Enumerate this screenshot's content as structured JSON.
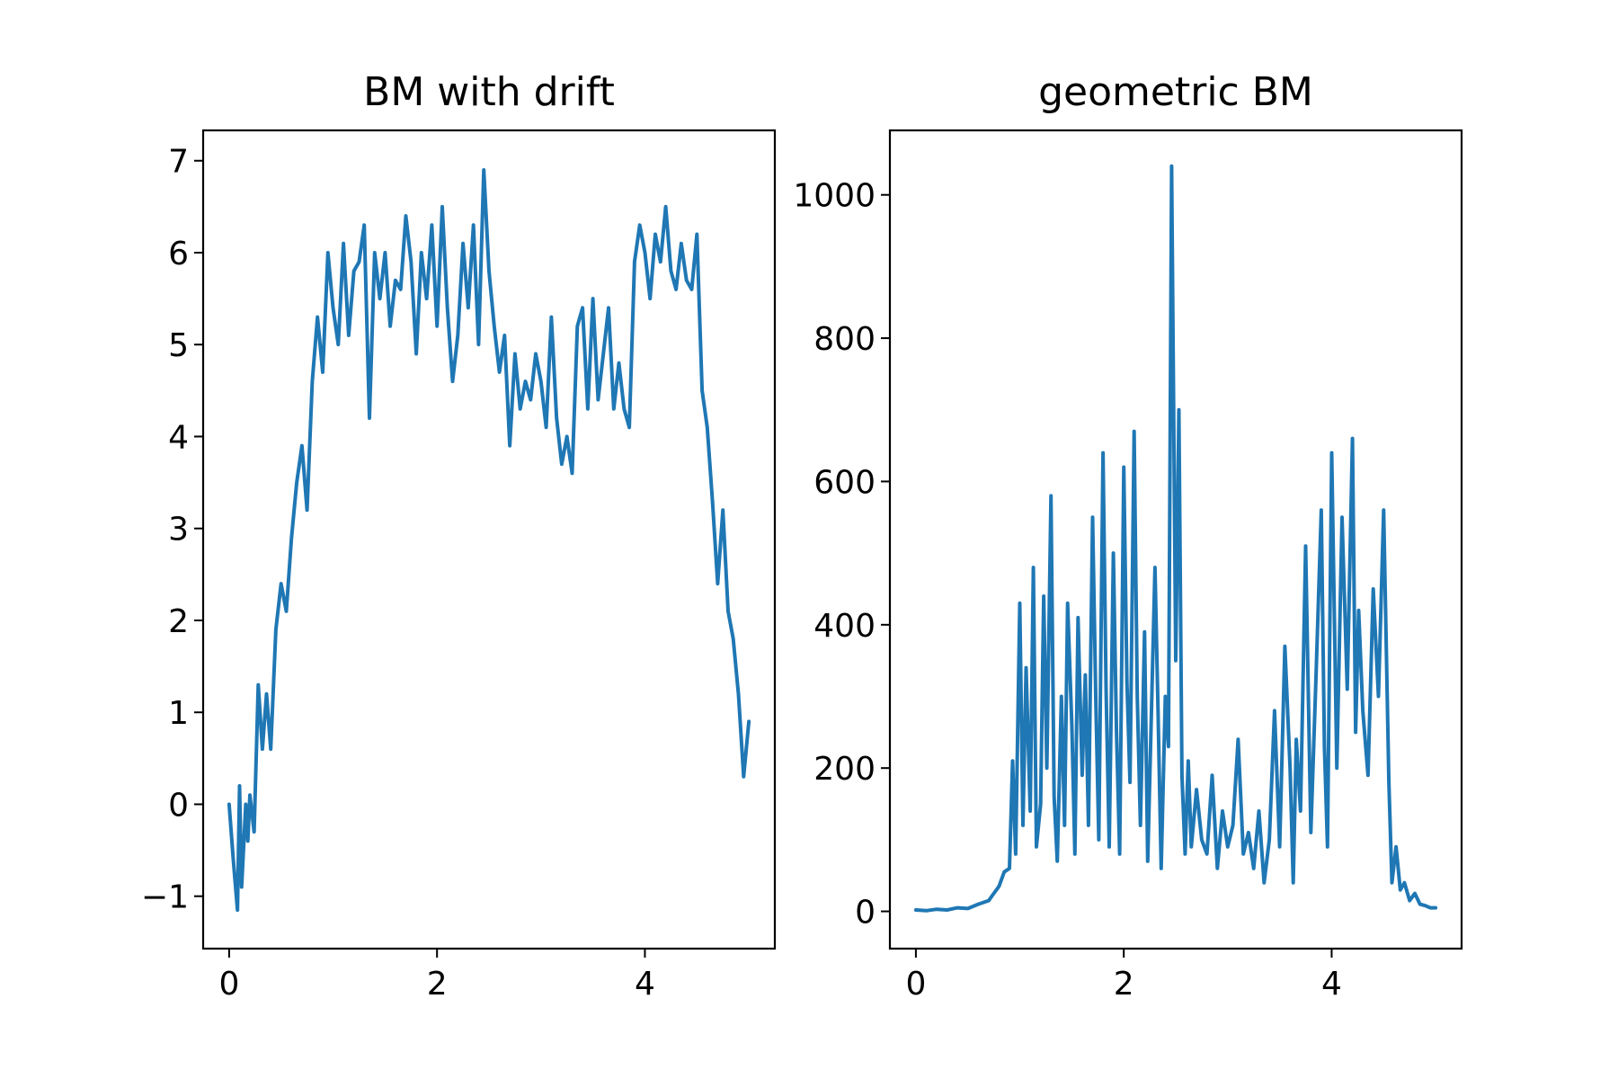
{
  "colors": {
    "line": "#1f77b4",
    "axes": "#000000",
    "background": "#ffffff"
  },
  "chart_data": [
    {
      "type": "line",
      "title": "BM with drift",
      "xlabel": "",
      "ylabel": "",
      "xlim": [
        -0.25,
        5.25
      ],
      "ylim": [
        -1.57,
        7.33
      ],
      "x_ticks": [
        0,
        2,
        4
      ],
      "x_tick_labels": [
        "0",
        "2",
        "4"
      ],
      "y_ticks": [
        -1,
        0,
        1,
        2,
        3,
        4,
        5,
        6,
        7
      ],
      "y_tick_labels": [
        "−1",
        "0",
        "1",
        "2",
        "3",
        "4",
        "5",
        "6",
        "7"
      ],
      "grid": false,
      "legend": "none",
      "series": [
        {
          "x": [
            0,
            0.04,
            0.08,
            0.1,
            0.12,
            0.16,
            0.18,
            0.2,
            0.24,
            0.28,
            0.32,
            0.36,
            0.4,
            0.45,
            0.5,
            0.55,
            0.6,
            0.65,
            0.7,
            0.75,
            0.8,
            0.85,
            0.9,
            0.95,
            1.0,
            1.05,
            1.1,
            1.15,
            1.2,
            1.25,
            1.3,
            1.35,
            1.4,
            1.45,
            1.5,
            1.55,
            1.6,
            1.65,
            1.7,
            1.75,
            1.8,
            1.85,
            1.9,
            1.95,
            2.0,
            2.05,
            2.1,
            2.15,
            2.2,
            2.25,
            2.3,
            2.35,
            2.4,
            2.45,
            2.5,
            2.55,
            2.6,
            2.65,
            2.7,
            2.75,
            2.8,
            2.85,
            2.9,
            2.95,
            3.0,
            3.05,
            3.1,
            3.15,
            3.2,
            3.25,
            3.3,
            3.35,
            3.4,
            3.45,
            3.5,
            3.55,
            3.6,
            3.65,
            3.7,
            3.75,
            3.8,
            3.85,
            3.9,
            3.95,
            4.0,
            4.05,
            4.1,
            4.15,
            4.2,
            4.25,
            4.3,
            4.35,
            4.4,
            4.45,
            4.5,
            4.55,
            4.6,
            4.65,
            4.7,
            4.75,
            4.8,
            4.85,
            4.9,
            4.95,
            5.0
          ],
          "y": [
            0,
            -0.6,
            -1.15,
            0.2,
            -0.9,
            0.0,
            -0.4,
            0.1,
            -0.3,
            1.3,
            0.6,
            1.2,
            0.6,
            1.9,
            2.4,
            2.1,
            2.9,
            3.5,
            3.9,
            3.2,
            4.6,
            5.3,
            4.7,
            6.0,
            5.4,
            5.0,
            6.1,
            5.1,
            5.8,
            5.9,
            6.3,
            4.2,
            6.0,
            5.5,
            6.0,
            5.2,
            5.7,
            5.6,
            6.4,
            5.9,
            4.9,
            6.0,
            5.5,
            6.3,
            5.2,
            6.5,
            5.4,
            4.6,
            5.1,
            6.1,
            5.4,
            6.3,
            5.0,
            6.9,
            5.8,
            5.2,
            4.7,
            5.1,
            3.9,
            4.9,
            4.3,
            4.6,
            4.4,
            4.9,
            4.6,
            4.1,
            5.3,
            4.2,
            3.7,
            4.0,
            3.6,
            5.2,
            5.4,
            4.3,
            5.5,
            4.4,
            4.9,
            5.4,
            4.3,
            4.8,
            4.3,
            4.1,
            5.9,
            6.3,
            6.0,
            5.5,
            6.2,
            5.9,
            6.5,
            5.8,
            5.6,
            6.1,
            5.7,
            5.6,
            6.2,
            4.5,
            4.1,
            3.3,
            2.4,
            3.2,
            2.1,
            1.8,
            1.2,
            0.3,
            0.9
          ]
        }
      ]
    },
    {
      "type": "line",
      "title": "geometric BM",
      "xlabel": "",
      "ylabel": "",
      "xlim": [
        -0.25,
        5.25
      ],
      "ylim": [
        -52,
        1090
      ],
      "x_ticks": [
        0,
        2,
        4
      ],
      "x_tick_labels": [
        "0",
        "2",
        "4"
      ],
      "y_ticks": [
        0,
        200,
        400,
        600,
        800,
        1000
      ],
      "y_tick_labels": [
        "0",
        "200",
        "400",
        "600",
        "800",
        "1000"
      ],
      "grid": false,
      "legend": "none",
      "series": [
        {
          "x": [
            0,
            0.1,
            0.2,
            0.3,
            0.4,
            0.5,
            0.6,
            0.7,
            0.75,
            0.8,
            0.85,
            0.9,
            0.93,
            0.96,
            1.0,
            1.03,
            1.06,
            1.1,
            1.13,
            1.16,
            1.2,
            1.23,
            1.26,
            1.3,
            1.33,
            1.36,
            1.4,
            1.43,
            1.46,
            1.5,
            1.53,
            1.56,
            1.6,
            1.63,
            1.66,
            1.7,
            1.73,
            1.76,
            1.8,
            1.83,
            1.86,
            1.9,
            1.93,
            1.96,
            2.0,
            2.03,
            2.06,
            2.1,
            2.13,
            2.16,
            2.2,
            2.23,
            2.26,
            2.3,
            2.33,
            2.36,
            2.4,
            2.43,
            2.46,
            2.5,
            2.53,
            2.56,
            2.59,
            2.62,
            2.65,
            2.7,
            2.75,
            2.8,
            2.85,
            2.9,
            2.95,
            3.0,
            3.05,
            3.1,
            3.15,
            3.2,
            3.25,
            3.3,
            3.35,
            3.4,
            3.45,
            3.5,
            3.55,
            3.6,
            3.63,
            3.66,
            3.7,
            3.75,
            3.8,
            3.85,
            3.9,
            3.93,
            3.96,
            4.0,
            4.05,
            4.1,
            4.15,
            4.2,
            4.23,
            4.26,
            4.3,
            4.35,
            4.4,
            4.45,
            4.5,
            4.55,
            4.58,
            4.62,
            4.66,
            4.7,
            4.75,
            4.8,
            4.85,
            4.9,
            4.95,
            5.0
          ],
          "y": [
            2,
            1,
            3,
            2,
            5,
            4,
            10,
            15,
            25,
            35,
            55,
            60,
            210,
            80,
            430,
            120,
            340,
            140,
            480,
            90,
            150,
            440,
            200,
            580,
            160,
            70,
            300,
            120,
            430,
            260,
            80,
            410,
            190,
            330,
            120,
            550,
            300,
            100,
            640,
            310,
            90,
            500,
            250,
            80,
            620,
            320,
            180,
            670,
            300,
            120,
            390,
            70,
            240,
            480,
            280,
            60,
            300,
            230,
            1040,
            350,
            700,
            190,
            80,
            210,
            90,
            170,
            100,
            80,
            190,
            60,
            140,
            90,
            120,
            240,
            80,
            110,
            60,
            140,
            40,
            100,
            280,
            90,
            370,
            200,
            40,
            240,
            140,
            510,
            110,
            330,
            560,
            230,
            90,
            640,
            200,
            550,
            310,
            660,
            250,
            420,
            280,
            190,
            450,
            300,
            560,
            180,
            40,
            90,
            30,
            40,
            15,
            25,
            10,
            8,
            5,
            5
          ]
        }
      ]
    }
  ]
}
